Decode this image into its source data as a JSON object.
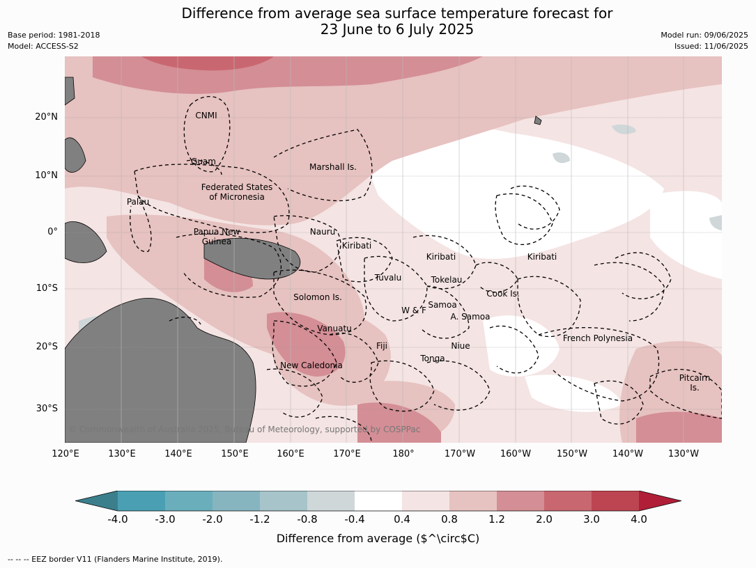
{
  "title_line1": "Difference from average sea surface temperature forecast for",
  "title_line2": "23 June to 6 July 2025",
  "meta_left": [
    "Base period: 1981-2018",
    "Model: ACCESS-S2"
  ],
  "meta_right": [
    "Model run: 09/06/2025",
    "Issued: 11/06/2025"
  ],
  "lat_labels": [
    "20°N",
    "10°N",
    "0°",
    "10°S",
    "20°S",
    "30°S"
  ],
  "lon_labels": [
    "120°E",
    "130°E",
    "140°E",
    "150°E",
    "160°E",
    "170°E",
    "180°",
    "170°W",
    "160°W",
    "150°W",
    "140°W",
    "130°W"
  ],
  "places": [
    "CNMI",
    "Guam",
    "Marshall Is.",
    "Federated States",
    "of Micronesia",
    "Palau",
    "Papua New",
    "Guinea",
    "Nauru",
    "Kiribati",
    "Kiribati",
    "Kiribati",
    "Tuvalu",
    "Tokelau",
    "Solomon Is.",
    "Samoa",
    "W & F",
    "A. Samoa",
    "Cook Is.",
    "Vanuatu",
    "Fiji",
    "Niue",
    "French Polynesia",
    "Tonga",
    "New Caledonia",
    "Pitcairn",
    "Is."
  ],
  "credit": "© Commonwealth of Australia 2025, Bureau of Meteorology, supported by COSPPac",
  "colorbar": {
    "ticks": [
      "-4.0",
      "-3.0",
      "-2.0",
      "-1.2",
      "-0.8",
      "-0.4",
      "0.4",
      "0.8",
      "1.2",
      "2.0",
      "3.0",
      "4.0"
    ],
    "colors": [
      "#3b7f8c",
      "#4aa0b2",
      "#6aaebc",
      "#86b5c0",
      "#a6c4c9",
      "#cfd7d9",
      "#ffffff",
      "#f4e4e3",
      "#e6c2c0",
      "#d48e95",
      "#c96770",
      "#bd4551",
      "#b11e38"
    ],
    "label": "Difference from average ($^\\circ$C)"
  },
  "legend": "--  --  -- EEZ border V11 (Flanders Marine Institute, 2019)."
}
